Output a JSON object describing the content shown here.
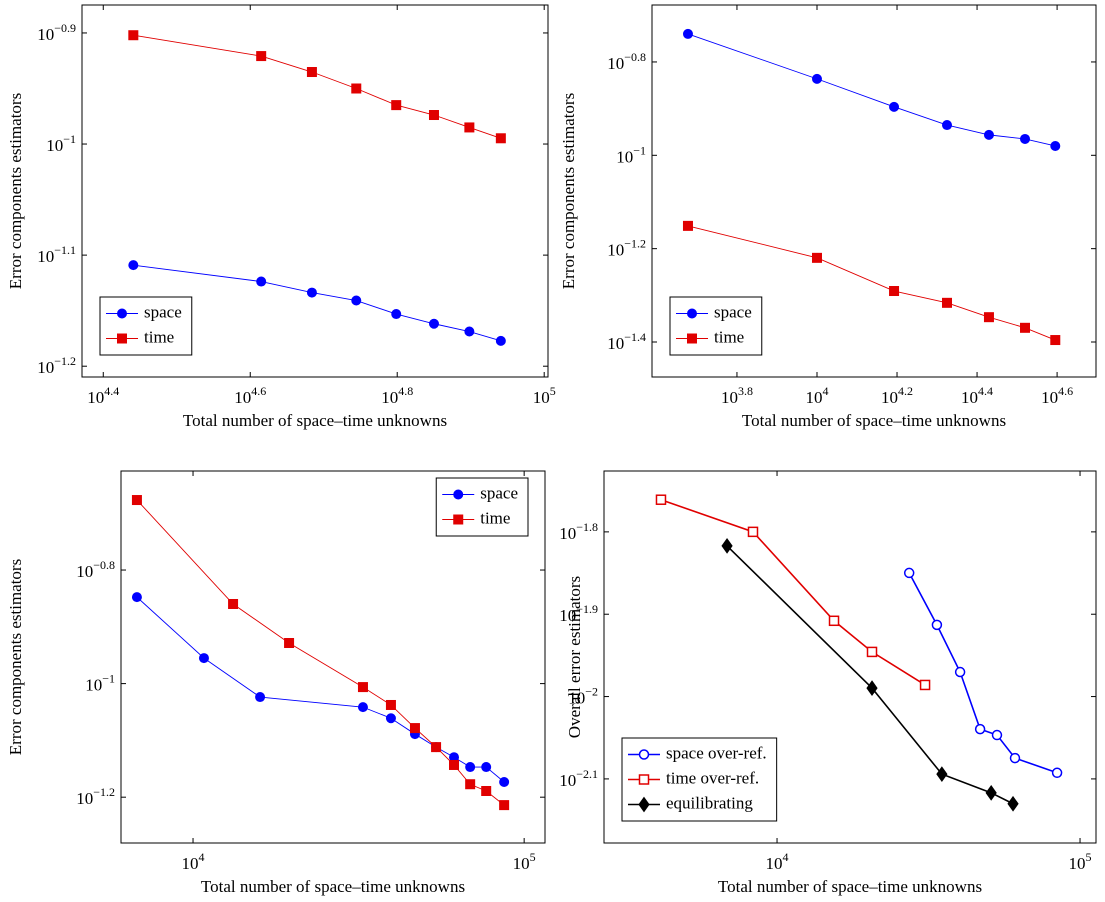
{
  "chart_data": [
    {
      "type": "line",
      "xscale": "log",
      "yscale": "log",
      "xlabel": "Total number of space–time unknowns",
      "ylabel": "Error components estimators",
      "xlim": [
        23500,
        101200
      ],
      "ylim": [
        0.0617,
        0.1334
      ],
      "xticks": [
        {
          "value": 25119,
          "label": "104.4"
        },
        {
          "value": 39811,
          "label": "104.6"
        },
        {
          "value": 63096,
          "label": "104.8"
        },
        {
          "value": 100000,
          "label": "105"
        }
      ],
      "yticks": [
        {
          "value": 0.12589,
          "label": "10−0.9"
        },
        {
          "value": 0.1,
          "label": "10−1"
        },
        {
          "value": 0.079433,
          "label": "10−1.1"
        },
        {
          "value": 0.063096,
          "label": "10−1.2"
        }
      ],
      "legend": "south west",
      "x": [
        27600,
        41200,
        48300,
        55500,
        62900,
        70800,
        79100,
        87300
      ],
      "series": [
        {
          "name": "space",
          "color": "#0000ff",
          "marker": "circle",
          "values": [
            0.0778,
            0.0752,
            0.0735,
            0.0723,
            0.0703,
            0.0689,
            0.0678,
            0.0665
          ]
        },
        {
          "name": "time",
          "color": "#e00000",
          "marker": "square",
          "values": [
            0.1253,
            0.12,
            0.1161,
            0.1122,
            0.1084,
            0.1062,
            0.1035,
            0.1012
          ]
        }
      ]
    },
    {
      "type": "line",
      "xscale": "log",
      "yscale": "log",
      "xlabel": "Total number of space–time unknowns",
      "ylabel": "Error components estimators",
      "xlim": [
        3870,
        49800
      ],
      "ylim": [
        0.0335,
        0.2099
      ],
      "xticks": [
        {
          "value": 6309.6,
          "label": "103.8"
        },
        {
          "value": 10000,
          "label": "104"
        },
        {
          "value": 15849,
          "label": "104.2"
        },
        {
          "value": 25119,
          "label": "104.4"
        },
        {
          "value": 39811,
          "label": "104.6"
        }
      ],
      "yticks": [
        {
          "value": 0.15849,
          "label": "10−0.8"
        },
        {
          "value": 0.1,
          "label": "10−1"
        },
        {
          "value": 0.063096,
          "label": "10−1.2"
        },
        {
          "value": 0.039811,
          "label": "10−1.4"
        }
      ],
      "legend": "south west",
      "x": [
        4760,
        10000,
        15580,
        21130,
        26900,
        33100,
        39400
      ],
      "series": [
        {
          "name": "space",
          "color": "#0000ff",
          "marker": "circle",
          "values": [
            0.182,
            0.1458,
            0.127,
            0.1161,
            0.1106,
            0.1084,
            0.1047
          ]
        },
        {
          "name": "time",
          "color": "#e00000",
          "marker": "square",
          "values": [
            0.0706,
            0.0603,
            0.0512,
            0.0483,
            0.045,
            0.0427,
            0.0402
          ]
        }
      ]
    },
    {
      "type": "line",
      "xscale": "log",
      "yscale": "log",
      "xlabel": "Total number of space–time unknowns",
      "ylabel": "Error components estimators",
      "xlim": [
        6060,
        115600
      ],
      "ylim": [
        0.0524,
        0.2368
      ],
      "xticks": [
        {
          "value": 10000,
          "label": "104"
        },
        {
          "value": 100000,
          "label": "105"
        }
      ],
      "yticks": [
        {
          "value": 0.15849,
          "label": "10−0.8"
        },
        {
          "value": 0.1,
          "label": "10−1"
        },
        {
          "value": 0.063096,
          "label": "10−1.2"
        }
      ],
      "legend": "north east",
      "series": [
        {
          "name": "space",
          "color": "#0000ff",
          "marker": "circle",
          "x": [
            6770,
            10790,
            15940,
            32600,
            39600,
            46800,
            54200,
            61400,
            68700,
            76800,
            87000
          ],
          "values": [
            0.142,
            0.1109,
            0.0947,
            0.0909,
            0.0869,
            0.0815,
            0.0773,
            0.0742,
            0.0713,
            0.0713,
            0.0671
          ]
        },
        {
          "name": "time",
          "color": "#e00000",
          "marker": "square",
          "x": [
            6770,
            13210,
            19500,
            32600,
            39600,
            46800,
            54200,
            61400,
            68700,
            76800,
            87000
          ],
          "values": [
            0.2105,
            0.1381,
            0.1179,
            0.0986,
            0.0917,
            0.0835,
            0.0773,
            0.0719,
            0.0665,
            0.0647,
            0.0611
          ]
        }
      ]
    },
    {
      "type": "line",
      "xscale": "log",
      "yscale": "log",
      "xlabel": "Total number of space–time unknowns",
      "ylabel": "Overall error estimators",
      "xlim": [
        2685,
        112900
      ],
      "ylim": [
        0.00664,
        0.01879
      ],
      "xticks": [
        {
          "value": 10000,
          "label": "104"
        },
        {
          "value": 100000,
          "label": "105"
        }
      ],
      "yticks": [
        {
          "value": 0.015849,
          "label": "10−1.8"
        },
        {
          "value": 0.012589,
          "label": "10−1.9"
        },
        {
          "value": 0.01,
          "label": "10−2"
        },
        {
          "value": 0.0079433,
          "label": "10−2.1"
        }
      ],
      "legend": "south west",
      "series": [
        {
          "name": "space over-ref.",
          "color": "#0000ff",
          "marker": "open-circle",
          "x": [
            27300,
            33700,
            40200,
            46800,
            53200,
            61000,
            84000
          ],
          "values": [
            0.01413,
            0.01222,
            0.01071,
            0.00913,
            0.00898,
            0.00842,
            0.00808
          ]
        },
        {
          "name": "time over-ref.",
          "color": "#e00000",
          "marker": "open-square",
          "x": [
            4140,
            8330,
            15420,
            20580,
            30800
          ],
          "values": [
            0.01734,
            0.01585,
            0.01236,
            0.01133,
            0.01033
          ]
        },
        {
          "name": "equilibrating",
          "color": "#000000",
          "marker": "diamond",
          "x": [
            6840,
            20580,
            35000,
            50900,
            60100
          ],
          "values": [
            0.01524,
            0.01024,
            0.00805,
            0.00764,
            0.00741
          ]
        }
      ]
    }
  ]
}
